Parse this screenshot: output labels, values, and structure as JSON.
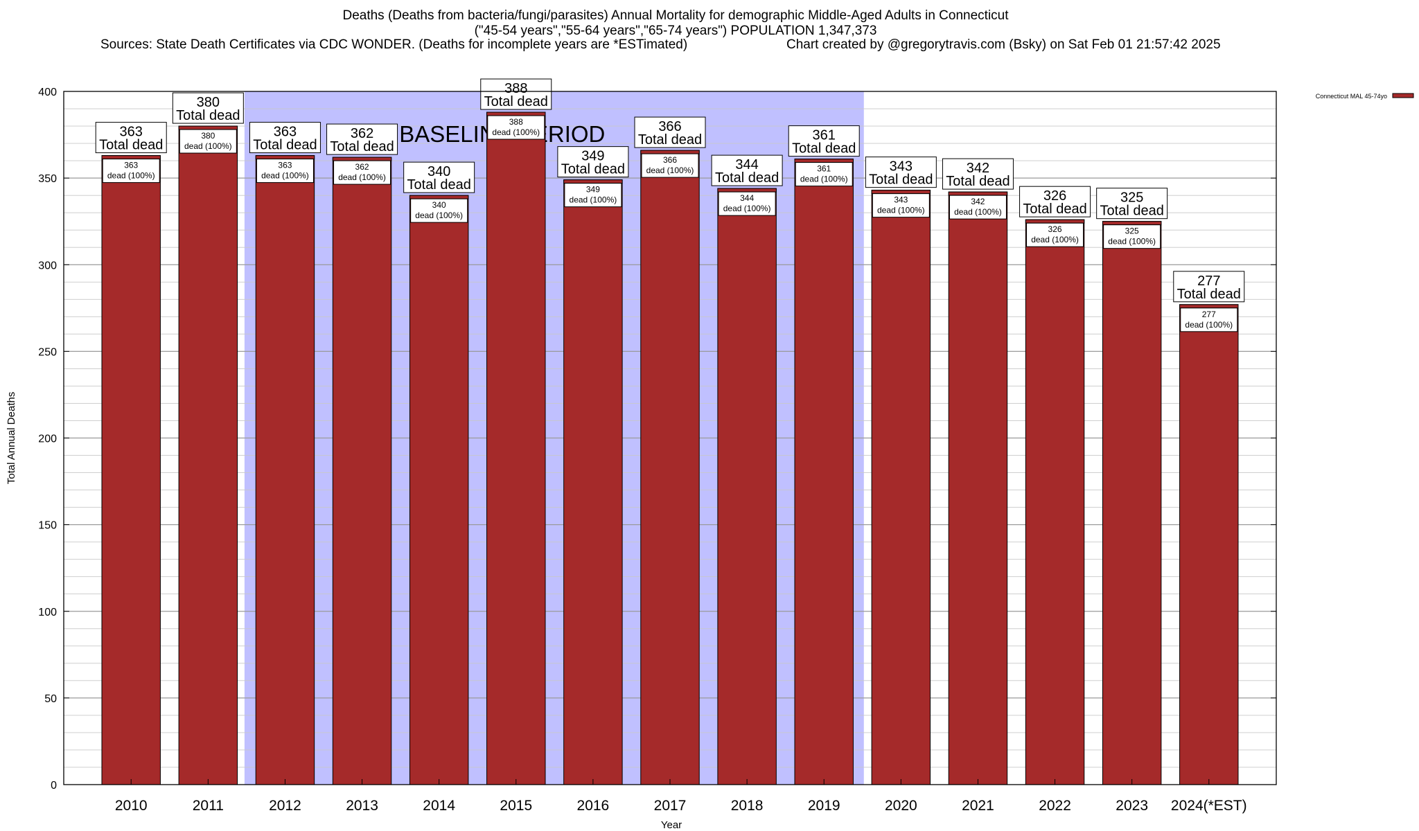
{
  "title": {
    "line1": "Deaths (Deaths from bacteria/fungi/parasites) Annual Mortality for demographic Middle-Aged Adults in Connecticut",
    "line2": "(\"45-54 years\",\"55-64 years\",\"65-74 years\") POPULATION 1,347,373",
    "sources": "Sources: State Death Certificates via CDC WONDER. (Deaths for incomplete years are *ESTimated)",
    "credit": "Chart created by @gregorytravis.com (Bsky) on Sat Feb 01 21:57:42 2025"
  },
  "chart_data": {
    "type": "bar",
    "categories": [
      "2010",
      "2011",
      "2012",
      "2013",
      "2014",
      "2015",
      "2016",
      "2017",
      "2018",
      "2019",
      "2020",
      "2021",
      "2022",
      "2023",
      "2024(*EST)"
    ],
    "series": [
      {
        "name": "Connecticut MAL 45-74yo",
        "values": [
          363,
          380,
          363,
          362,
          340,
          388,
          349,
          366,
          344,
          361,
          343,
          342,
          326,
          325,
          277
        ],
        "color": "#a52a2a"
      }
    ],
    "xlabel": "Year",
    "ylabel": "Total Annual Deaths",
    "ylim": [
      0,
      400
    ],
    "yticks": [
      0,
      50,
      100,
      150,
      200,
      250,
      300,
      350,
      400
    ],
    "grid": true,
    "legend_position": "top-right",
    "baseline_period": {
      "label": "BASELINE PERIOD",
      "from": "2012",
      "to": "2019",
      "color": "#c0c0ff"
    },
    "total_label_suffix": "Total dead",
    "inner_label_suffix": "dead (100%)"
  }
}
